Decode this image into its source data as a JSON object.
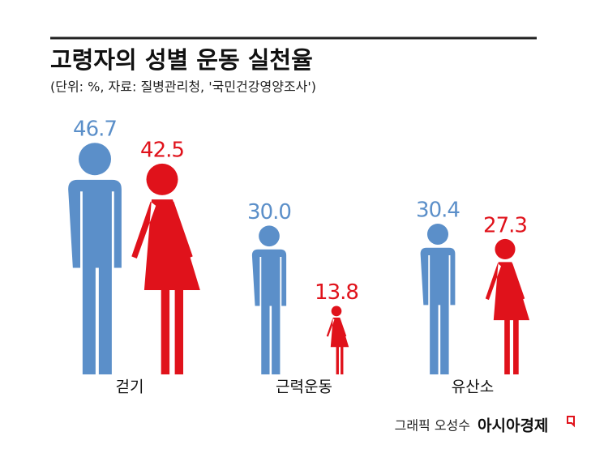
{
  "chart_data": {
    "type": "pictogram",
    "title": "고령자의 성별 운동 실천율",
    "subtitle": "(단위: %, 자료: 질병관리청, '국민건강영양조사')",
    "categories": [
      "걷기",
      "근력운동",
      "유산소"
    ],
    "series": [
      {
        "color": "#5b8fc9",
        "icon": "man",
        "values": [
          46.7,
          30.0,
          30.4
        ],
        "value_labels": [
          "46.7",
          "30.0",
          "30.4"
        ]
      },
      {
        "color": "#e0121b",
        "icon": "woman",
        "values": [
          42.5,
          13.8,
          27.3
        ],
        "value_labels": [
          "42.5",
          "13.8",
          "27.3"
        ]
      }
    ]
  },
  "footer": {
    "credit": "그래픽 오성수",
    "brand": "아시아경제"
  }
}
